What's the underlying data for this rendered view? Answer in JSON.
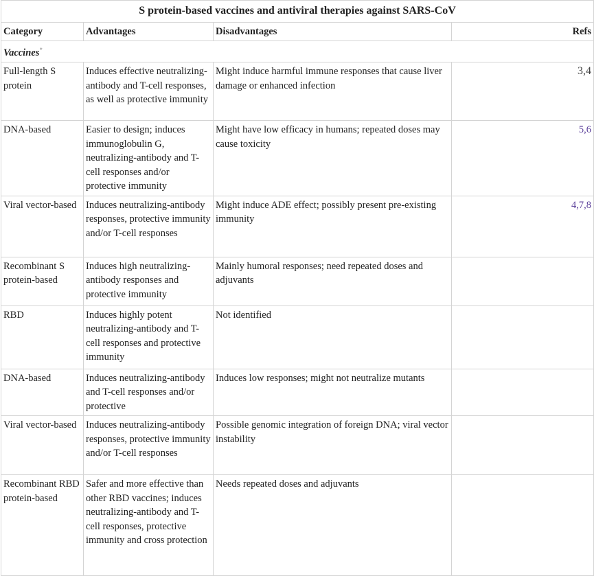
{
  "title": "S protein-based vaccines and antiviral therapies against SARS-CoV",
  "headers": {
    "category": "Category",
    "advantages": "Advantages",
    "disadvantages": "Disadvantages",
    "refs": "Refs"
  },
  "section": "Vaccines",
  "section_mark": "*",
  "link_color": "#5b3f9a",
  "rows": [
    {
      "category": "Full-length S protein",
      "advantages": "Induces effective neutralizing-antibody and T-cell responses, as well as protective immunity",
      "disadvantages": "Might induce harmful immune responses that cause liver damage or enhanced infection",
      "refs": "3,4"
    },
    {
      "category": "DNA-based",
      "advantages": "Easier to design; induces immunoglobulin G, neutralizing-antibody and T-cell responses and/or protective immunity",
      "disadvantages": "Might have low efficacy in humans; repeated doses may cause toxicity",
      "refs": "5,6"
    },
    {
      "category": "Viral vector-based",
      "advantages": "Induces neutralizing-antibody responses, protective immunity and/or T-cell responses",
      "disadvantages": "Might induce ADE effect; possibly present pre-existing immunity",
      "refs": "4,7,8"
    },
    {
      "category": "Recombinant S protein-based",
      "advantages": "Induces high neutralizing-antibody responses and protective immunity",
      "disadvantages": "Mainly humoral responses; need repeated doses and adjuvants",
      "refs": ""
    },
    {
      "category": "RBD",
      "advantages": "Induces highly potent neutralizing-antibody and T-cell responses and protective immunity",
      "disadvantages": "Not identified",
      "refs": ""
    },
    {
      "category": "DNA-based",
      "advantages": "Induces neutralizing-antibody and T-cell responses and/or protective",
      "disadvantages": "Induces low responses; might not neutralize mutants",
      "refs": ""
    },
    {
      "category": "Viral vector-based",
      "advantages": "Induces neutralizing-antibody responses, protective immunity and/or T-cell responses",
      "disadvantages": "Possible genomic integration of foreign DNA; viral vector instability",
      "refs": ""
    },
    {
      "category": "Recombinant RBD protein-based",
      "advantages": "Safer and more effective than other RBD vaccines; induces neutralizing-antibody and T-cell responses, protective immunity and cross protection",
      "disadvantages": "Needs repeated doses and adjuvants",
      "refs": ""
    }
  ]
}
